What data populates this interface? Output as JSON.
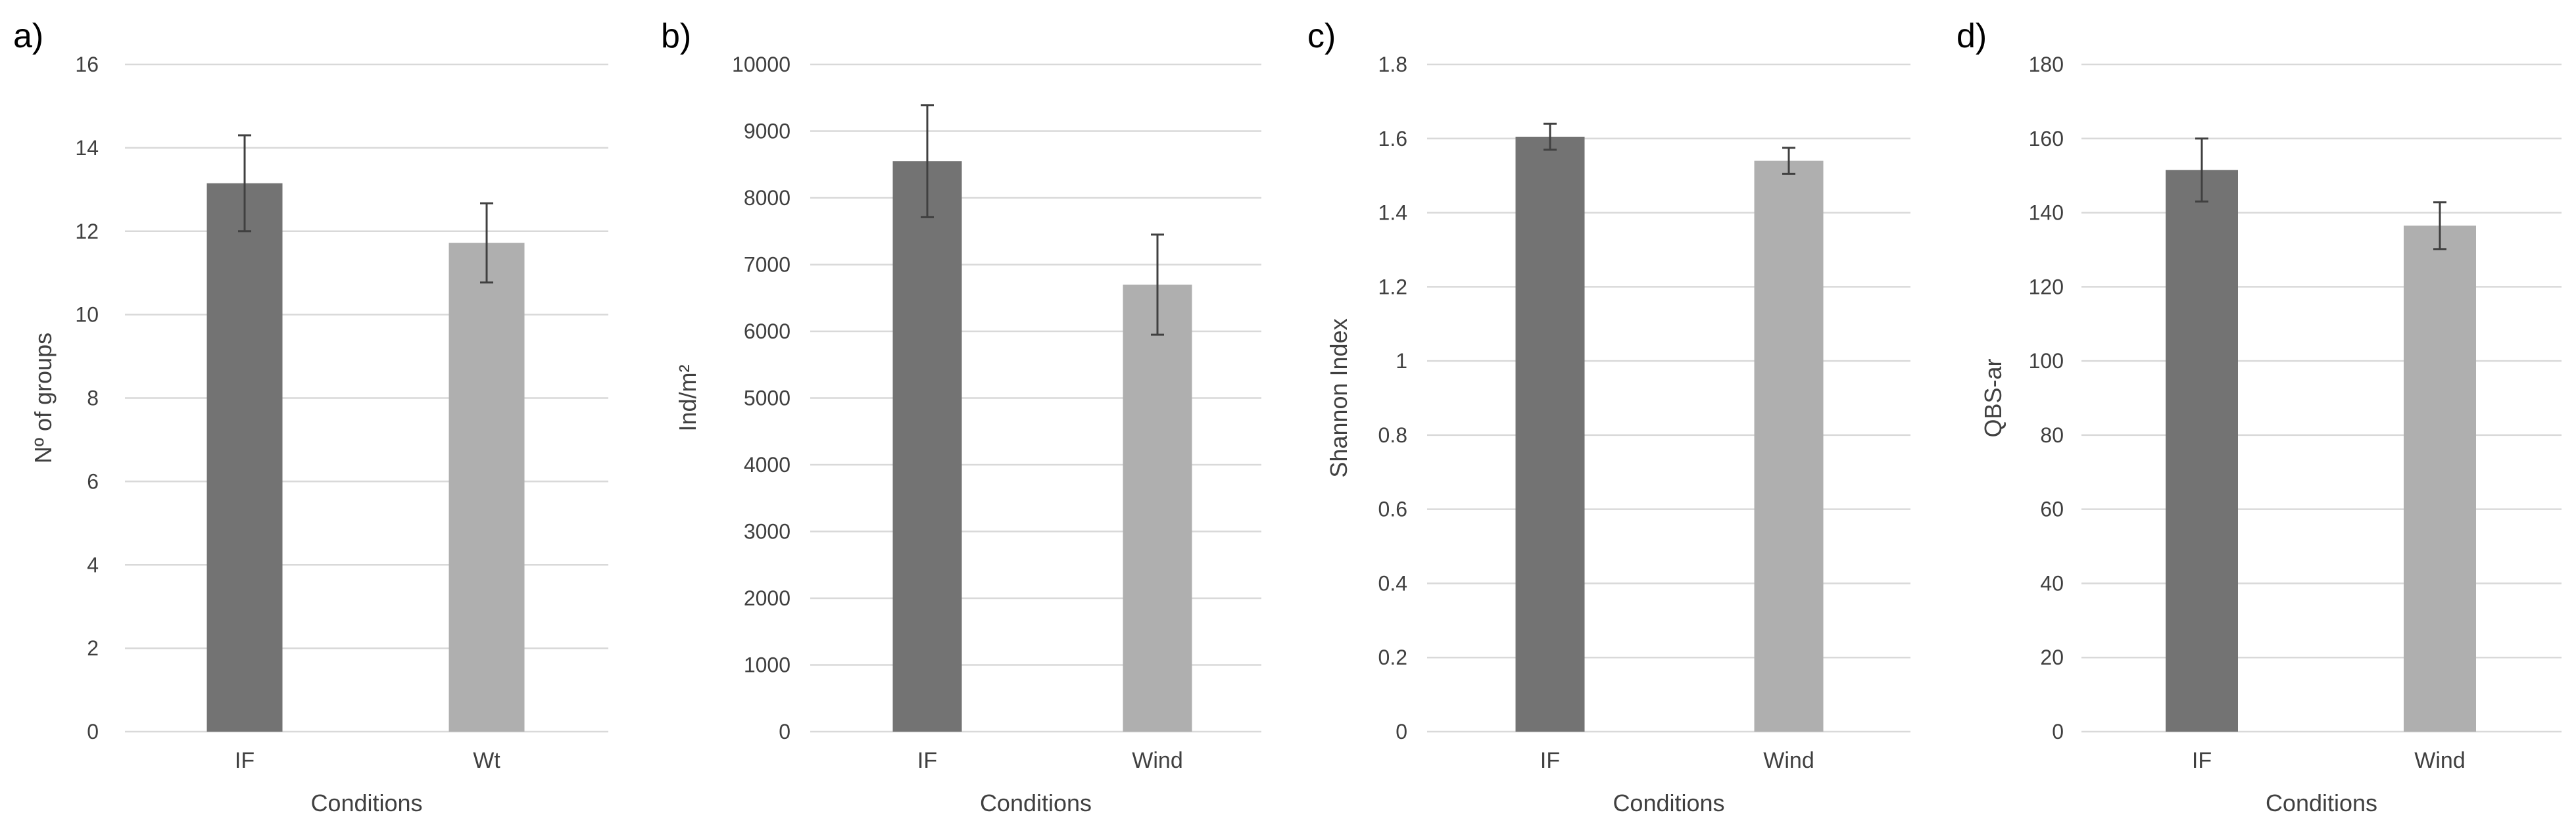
{
  "colors": {
    "bar_1": "#737373",
    "bar_2": "#afafaf",
    "grid": "#d9d9d9",
    "text": "#404040"
  },
  "chart_data": [
    {
      "type": "bar",
      "panel_label": "a)",
      "categories": [
        "IF",
        "Wt"
      ],
      "values": [
        13.15,
        11.72
      ],
      "errors": [
        1.15,
        0.95
      ],
      "xlabel": "Conditions",
      "ylabel": "Nº of groups",
      "ylim": [
        0,
        16
      ],
      "yticks": [
        "0",
        "2",
        "4",
        "6",
        "8",
        "10",
        "12",
        "14",
        "16"
      ],
      "grid": true
    },
    {
      "type": "bar",
      "panel_label": "b)",
      "categories": [
        "IF",
        "Wind"
      ],
      "values": [
        8550,
        6700
      ],
      "errors": [
        840,
        750
      ],
      "xlabel": "Conditions",
      "ylabel": "Ind/m²",
      "ylim": [
        0,
        10000
      ],
      "yticks": [
        "0",
        "1000",
        "2000",
        "3000",
        "4000",
        "5000",
        "6000",
        "7000",
        "8000",
        "9000",
        "10000"
      ],
      "grid": true
    },
    {
      "type": "bar",
      "panel_label": "c)",
      "categories": [
        "IF",
        "Wind"
      ],
      "values": [
        1.605,
        1.54
      ],
      "errors": [
        0.035,
        0.035
      ],
      "xlabel": "Conditions",
      "ylabel": "Shannon Index",
      "ylim": [
        0,
        1.8
      ],
      "yticks": [
        "0",
        "0.2",
        "0.4",
        "0.6",
        "0.8",
        "1",
        "1.2",
        "1.4",
        "1.6",
        "1.8"
      ],
      "grid": true
    },
    {
      "type": "bar",
      "panel_label": "d)",
      "categories": [
        "IF",
        "Wind"
      ],
      "values": [
        151.5,
        136.5
      ],
      "errors": [
        8.5,
        6.3
      ],
      "xlabel": "Conditions",
      "ylabel": "QBS-ar",
      "ylim": [
        0,
        180
      ],
      "yticks": [
        "0",
        "20",
        "40",
        "60",
        "80",
        "100",
        "120",
        "140",
        "160",
        "180"
      ],
      "grid": true
    }
  ]
}
